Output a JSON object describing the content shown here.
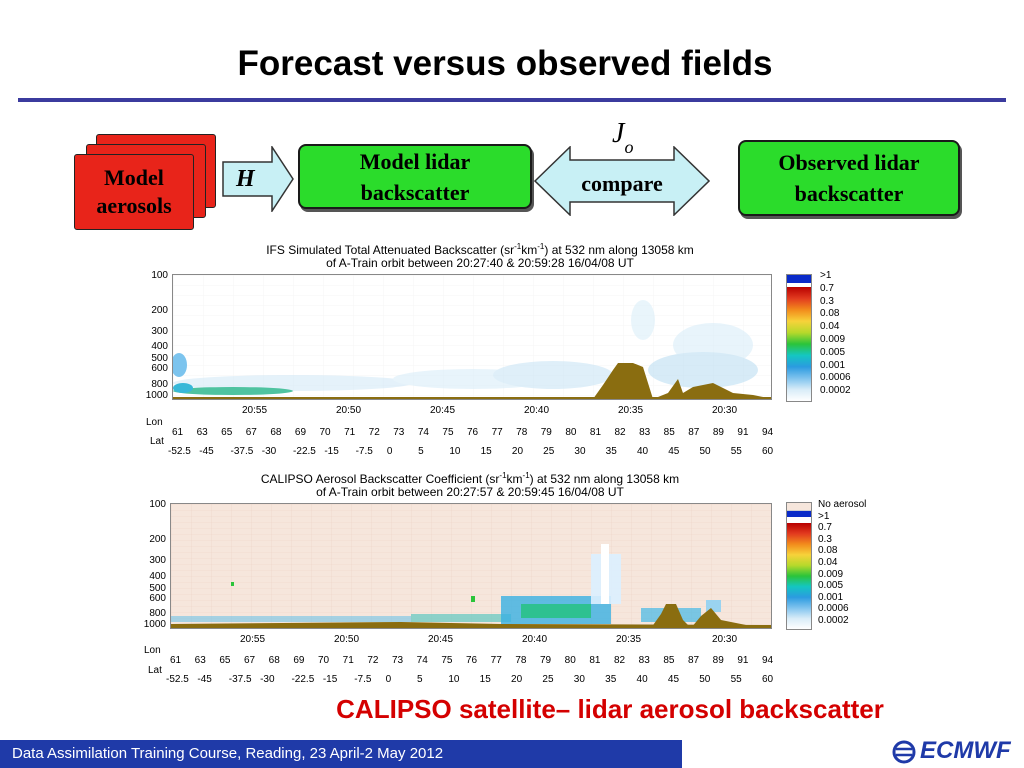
{
  "slide": {
    "title": "Forecast versus observed fields",
    "caption": "CALIPSO satellite– lidar aerosol backscatter",
    "footer": "Data Assimilation Training Course, Reading, 23 April-2 May 2012",
    "logo": "ECMWF"
  },
  "diagram": {
    "stack_label_line1": "Model",
    "stack_label_line2": "aerosols",
    "operator": "H",
    "model_box_line1": "Model lidar",
    "model_box_line2": "backscatter",
    "jo_main": "J",
    "jo_sub": "o",
    "compare": "compare",
    "obs_box_line1": "Observed lidar",
    "obs_box_line2": "backscatter"
  },
  "plots": [
    {
      "title_line1_pre": "IFS Simulated Total Attenuated Backscatter (sr",
      "title_line1_sup1": "-1",
      "title_line1_mid": "km",
      "title_line1_sup2": "-1",
      "title_line1_post": ") at 532 nm along 13058 km",
      "title_line2": "of A-Train orbit between 20:27:40 & 20:59:28 16/04/08 UT",
      "y_ticks": [
        "100",
        "200",
        "300",
        "400",
        "500",
        "600",
        "800",
        "1000"
      ],
      "time_ticks": [
        "20:55",
        "20:50",
        "20:45",
        "20:40",
        "20:35",
        "20:30"
      ],
      "lon_label": "Lon",
      "lon_ticks": [
        "61",
        "63",
        "65",
        "67",
        "68",
        "69",
        "70",
        "71",
        "72",
        "73",
        "74",
        "75",
        "76",
        "77",
        "78",
        "79",
        "80",
        "81",
        "82",
        "83",
        "85",
        "87",
        "89",
        "91",
        "94"
      ],
      "lat_label": "Lat",
      "lat_ticks": [
        "-52.5",
        "-45",
        "-37.5",
        "-30",
        "-22.5",
        "-15",
        "-7.5",
        "0",
        "5",
        "10",
        "15",
        "20",
        "25",
        "30",
        "35",
        "40",
        "45",
        "50",
        "55",
        "60"
      ],
      "legend": [
        ">1",
        "0.7",
        "0.3",
        "0.08",
        "0.04",
        "0.009",
        "0.005",
        "0.001",
        "0.0006",
        "0.0002"
      ]
    },
    {
      "title_line1_pre": "CALIPSO Aerosol Backscatter Coefficient (sr",
      "title_line1_sup1": "-1",
      "title_line1_mid": "km",
      "title_line1_sup2": "-1",
      "title_line1_post": ") at 532 nm along 13058 km",
      "title_line2": "of A-Train orbit between 20:27:57 & 20:59:45 16/04/08 UT",
      "y_ticks": [
        "100",
        "200",
        "300",
        "400",
        "500",
        "600",
        "800",
        "1000"
      ],
      "time_ticks": [
        "20:55",
        "20:50",
        "20:45",
        "20:40",
        "20:35",
        "20:30"
      ],
      "lon_label": "Lon",
      "lon_ticks": [
        "61",
        "63",
        "65",
        "67",
        "68",
        "69",
        "70",
        "71",
        "72",
        "73",
        "74",
        "75",
        "76",
        "77",
        "78",
        "79",
        "80",
        "81",
        "82",
        "83",
        "85",
        "87",
        "89",
        "91",
        "94"
      ],
      "lat_label": "Lat",
      "lat_ticks": [
        "-52.5",
        "-45",
        "-37.5",
        "-30",
        "-22.5",
        "-15",
        "-7.5",
        "0",
        "5",
        "10",
        "15",
        "20",
        "25",
        "30",
        "35",
        "40",
        "45",
        "50",
        "55",
        "60"
      ],
      "legend": [
        "No aerosol",
        ">1",
        "0.7",
        "0.3",
        "0.08",
        "0.04",
        "0.009",
        "0.005",
        "0.001",
        "0.0006",
        "0.0002"
      ]
    }
  ],
  "colors": {
    "title_rule": "#3b3b9e",
    "caption": "#d40000",
    "footer_bg": "#1f3aa8",
    "box_green": "#2bdc2b",
    "stack_red": "#e8241a",
    "terrain": "#8a6d10",
    "calipso_bg": "#f6e6dc"
  }
}
